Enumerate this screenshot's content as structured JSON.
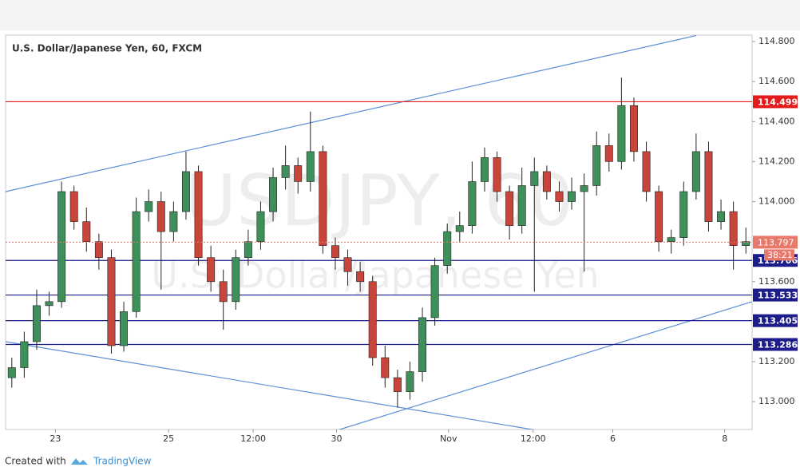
{
  "chart_data": {
    "type": "candlestick",
    "title": "U.S. Dollar/Japanese Yen, 60, FXCM",
    "watermark": "USDJPY, 60",
    "watermark_subtitle": "U.S. Dollar/Japanese Yen",
    "footer": {
      "created": "Created with",
      "brand": "TradingView"
    },
    "colors": {
      "up": "#3f8f5a",
      "down": "#c7453a",
      "trendline": "#5b8fd9"
    },
    "xlim": [
      0,
      60
    ],
    "xticks": [
      {
        "value": 4.0,
        "label": "23"
      },
      {
        "value": 13.1,
        "label": "25"
      },
      {
        "value": 19.9,
        "label": "12:00"
      },
      {
        "value": 26.6,
        "label": "30"
      },
      {
        "value": 35.6,
        "label": "Nov"
      },
      {
        "value": 42.4,
        "label": "12:00"
      },
      {
        "value": 48.8,
        "label": "6"
      },
      {
        "value": 57.8,
        "label": "8"
      }
    ],
    "ylim": [
      112.861,
      114.832
    ],
    "yticks": [
      {
        "value": 114.8,
        "label": "114.800"
      },
      {
        "value": 114.6,
        "label": "114.600"
      },
      {
        "value": 114.4,
        "label": "114.400"
      },
      {
        "value": 114.2,
        "label": "114.200"
      },
      {
        "value": 114.0,
        "label": "114.000"
      },
      {
        "value": 113.6,
        "label": "113.600"
      },
      {
        "value": 113.2,
        "label": "113.200"
      },
      {
        "value": 113.0,
        "label": "113.000"
      }
    ],
    "open": [
      113.12,
      113.17,
      113.3,
      113.48,
      113.5,
      114.05,
      113.9,
      113.8,
      113.72,
      113.28,
      113.45,
      113.95,
      114.0,
      113.85,
      113.95,
      114.15,
      113.72,
      113.6,
      113.5,
      113.72,
      113.8,
      113.95,
      114.12,
      114.18,
      114.1,
      114.25,
      113.78,
      113.72,
      113.65,
      113.6,
      113.22,
      113.12,
      113.05,
      113.15,
      113.42,
      113.68,
      113.85,
      113.88,
      114.1,
      114.22,
      114.05,
      113.88,
      114.08,
      114.15,
      114.05,
      114.0,
      114.05,
      114.08,
      114.28,
      114.2,
      114.48,
      114.25,
      114.05,
      113.8,
      113.82,
      114.05,
      114.25,
      113.9,
      113.95,
      113.78
    ],
    "high": [
      113.22,
      113.35,
      113.56,
      113.55,
      114.1,
      114.08,
      113.97,
      113.84,
      113.76,
      113.5,
      114.02,
      114.06,
      114.05,
      114.0,
      114.25,
      114.18,
      113.78,
      113.66,
      113.76,
      113.86,
      114.0,
      114.17,
      114.28,
      114.22,
      114.45,
      114.28,
      113.82,
      113.76,
      113.7,
      113.63,
      113.28,
      113.16,
      113.2,
      113.47,
      113.72,
      113.89,
      113.95,
      114.2,
      114.27,
      114.25,
      114.08,
      114.17,
      114.22,
      114.18,
      114.1,
      114.12,
      114.14,
      114.35,
      114.34,
      114.62,
      114.52,
      114.3,
      114.08,
      113.86,
      114.1,
      114.34,
      114.3,
      114.01,
      114.0,
      113.87
    ],
    "low": [
      113.07,
      113.12,
      113.26,
      113.43,
      113.47,
      113.86,
      113.75,
      113.66,
      113.24,
      113.25,
      113.42,
      113.9,
      113.56,
      113.8,
      113.91,
      113.68,
      113.55,
      113.36,
      113.46,
      113.68,
      113.76,
      113.9,
      114.06,
      114.04,
      114.05,
      113.74,
      113.66,
      113.58,
      113.55,
      113.18,
      113.07,
      112.97,
      113.01,
      113.1,
      113.38,
      113.64,
      113.8,
      113.84,
      114.05,
      114.0,
      113.81,
      113.84,
      113.55,
      114.01,
      113.95,
      113.96,
      113.65,
      114.03,
      114.15,
      114.16,
      114.2,
      114.0,
      113.75,
      113.74,
      113.78,
      114.01,
      113.85,
      113.86,
      113.66,
      113.74
    ],
    "close": [
      113.17,
      113.3,
      113.48,
      113.5,
      114.05,
      113.9,
      113.8,
      113.72,
      113.28,
      113.45,
      113.95,
      114.0,
      113.85,
      113.95,
      114.15,
      113.72,
      113.6,
      113.5,
      113.72,
      113.8,
      113.95,
      114.12,
      114.18,
      114.1,
      114.25,
      113.78,
      113.72,
      113.65,
      113.6,
      113.22,
      113.12,
      113.05,
      113.15,
      113.42,
      113.68,
      113.85,
      113.88,
      114.1,
      114.22,
      114.05,
      113.88,
      114.08,
      114.15,
      114.05,
      114.0,
      114.05,
      114.08,
      114.28,
      114.2,
      114.48,
      114.25,
      114.05,
      113.8,
      113.82,
      114.05,
      114.25,
      113.9,
      113.95,
      113.78,
      113.8
    ],
    "levels": [
      {
        "value": 114.499,
        "color": "#e31b1b"
      },
      {
        "value": 113.706,
        "color": "#1c1c8a"
      },
      {
        "value": 113.533,
        "color": "#1c1c8a"
      },
      {
        "value": 113.405,
        "color": "#1c1c8a"
      },
      {
        "value": 113.286,
        "color": "#1c1c8a"
      }
    ],
    "last_price": {
      "value": 113.797,
      "color": "#e8786a",
      "countdown": "38:21"
    },
    "trendlines": [
      {
        "x": [
          0,
          55.5
        ],
        "y": [
          114.05,
          114.83
        ]
      },
      {
        "x": [
          26.8,
          60
        ],
        "y": [
          112.86,
          113.5
        ]
      },
      {
        "x": [
          0,
          42.4
        ],
        "y": [
          113.3,
          112.86
        ]
      }
    ]
  }
}
